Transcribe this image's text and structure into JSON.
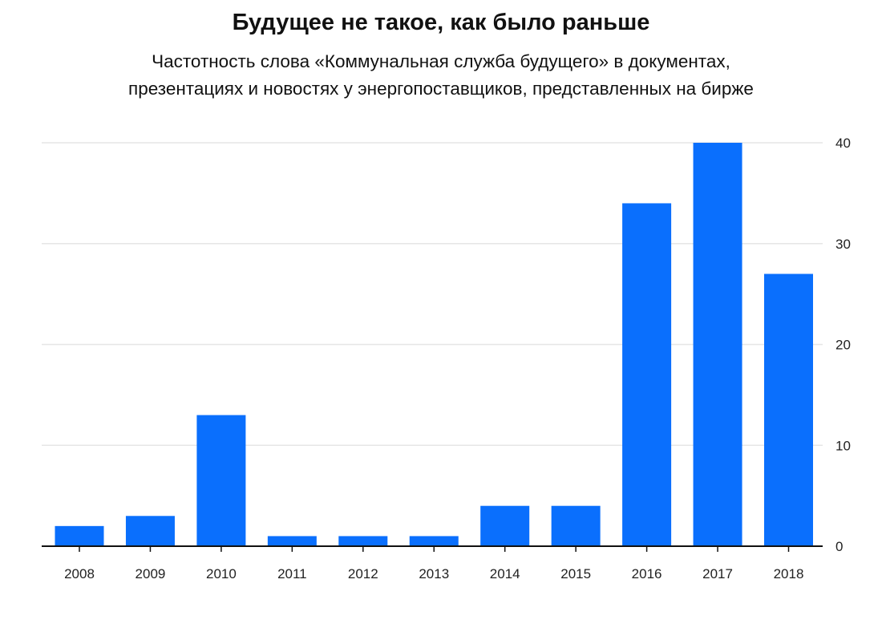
{
  "header": {
    "title": "Будущее не такое, как было раньше",
    "subtitle_lines": [
      "Частотность слова «Коммунальная служба будущего» в документах,",
      "презентациях и новостях у энергопоставщиков, представленных на бирже"
    ]
  },
  "colors": {
    "bar": "#0a6ffd",
    "grid": "#e6e6e6",
    "axis": "#111111",
    "text": "#111111"
  },
  "chart_data": {
    "type": "bar",
    "title": "Будущее не такое, как было раньше",
    "subtitle": "Частотность слова «Коммунальная служба будущего» в документах, презентациях и новостях у энергопоставщиков, представленных на бирже",
    "categories": [
      "2008",
      "2009",
      "2010",
      "2011",
      "2012",
      "2013",
      "2014",
      "2015",
      "2016",
      "2017",
      "2018"
    ],
    "values": [
      2,
      3,
      13,
      1,
      1,
      1,
      4,
      4,
      34,
      40,
      27
    ],
    "ylim": [
      0,
      40
    ],
    "y_ticks": [
      0,
      10,
      20,
      30,
      40
    ],
    "y_axis_side": "right",
    "grid": true,
    "xlabel": "",
    "ylabel": ""
  }
}
